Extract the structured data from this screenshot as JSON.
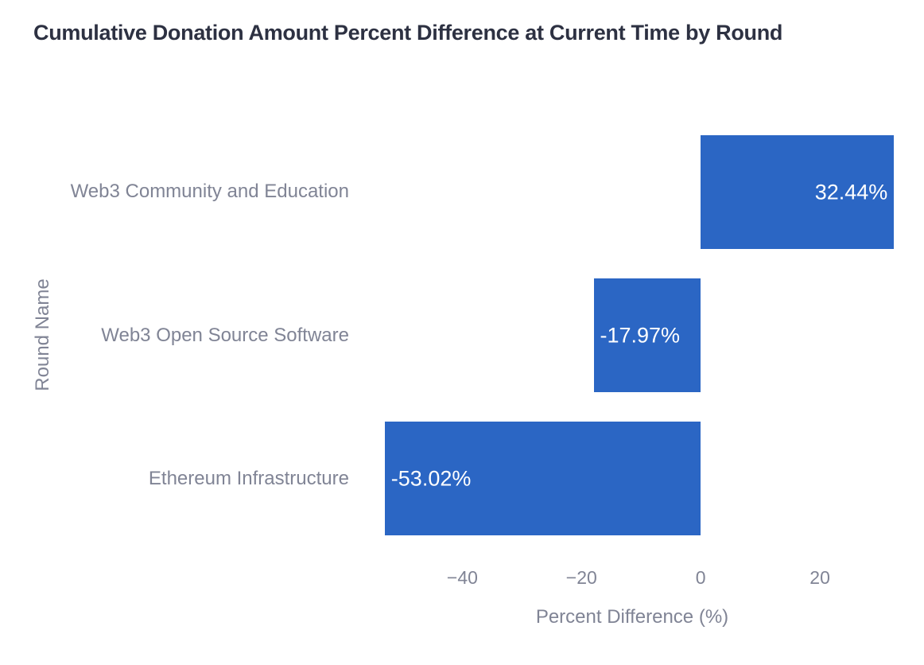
{
  "colors": {
    "bar": "#2b66c4",
    "title_text": "#2d3142",
    "axis_text": "#808495",
    "bar_label_text": "#ffffff",
    "background": "#ffffff"
  },
  "chart_data": {
    "type": "bar",
    "orientation": "horizontal",
    "title": "Cumulative Donation Amount Percent Difference at Current Time by Round",
    "categories": [
      "Web3 Community and Education",
      "Web3 Open Source Software",
      "Ethereum Infrastructure"
    ],
    "values": [
      32.44,
      -17.97,
      -53.02
    ],
    "bar_labels": [
      "32.44%",
      "-17.97%",
      "-53.02%"
    ],
    "xlabel": "Percent Difference (%)",
    "ylabel": "Round Name",
    "xlim": [
      -56.2,
      33.2
    ],
    "x_ticks": [
      {
        "value": -40,
        "label": "−40"
      },
      {
        "value": -20,
        "label": "−20"
      },
      {
        "value": 0,
        "label": "0"
      },
      {
        "value": 20,
        "label": "20"
      }
    ],
    "grid": false,
    "legend": false,
    "value_label_position": "inside-end",
    "bar_fill_fraction": 0.795
  }
}
